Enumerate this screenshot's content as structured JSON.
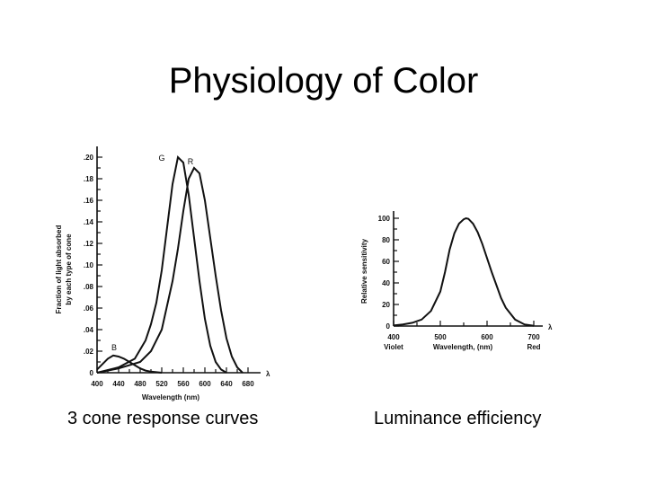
{
  "slide": {
    "title": "Physiology of Color",
    "left_caption": "3 cone response curves",
    "right_caption": "Luminance efficiency"
  },
  "chart_data": [
    {
      "type": "line",
      "ylabel_lines": [
        "Fraction of light absorbed",
        "by each type of cone"
      ],
      "xlabel": "Wavelength (nm)",
      "x_axis_symbol": "λ",
      "xlim": [
        400,
        680
      ],
      "ylim": [
        0,
        0.2
      ],
      "x_ticks": [
        400,
        440,
        480,
        520,
        560,
        600,
        640,
        680
      ],
      "x_tick_labels": [
        "400",
        "440",
        "480",
        "520",
        "560",
        "600",
        "640",
        "680"
      ],
      "x_minor_ticks": [
        420,
        460,
        500,
        540,
        580,
        620,
        660
      ],
      "y_ticks": [
        0,
        0.02,
        0.04,
        0.06,
        0.08,
        0.1,
        0.12,
        0.14,
        0.16,
        0.18,
        0.2
      ],
      "y_tick_labels": [
        "0",
        ".02",
        ".04",
        ".06",
        ".08",
        ".10",
        ".12",
        ".14",
        ".16",
        ".18",
        ".20"
      ],
      "series": [
        {
          "name": "B",
          "x": [
            400,
            410,
            420,
            430,
            440,
            450,
            460,
            470,
            480,
            490,
            500,
            510,
            520
          ],
          "y": [
            0.003,
            0.008,
            0.013,
            0.016,
            0.015,
            0.013,
            0.01,
            0.007,
            0.004,
            0.002,
            0.001,
            0.0005,
            0.0
          ]
        },
        {
          "name": "G",
          "x": [
            400,
            440,
            470,
            490,
            500,
            510,
            520,
            530,
            540,
            550,
            560,
            570,
            580,
            590,
            600,
            610,
            620,
            630,
            640
          ],
          "y": [
            0.0,
            0.005,
            0.013,
            0.03,
            0.045,
            0.065,
            0.095,
            0.135,
            0.175,
            0.2,
            0.195,
            0.165,
            0.125,
            0.085,
            0.05,
            0.025,
            0.01,
            0.003,
            0.0
          ]
        },
        {
          "name": "R",
          "x": [
            400,
            440,
            480,
            500,
            520,
            540,
            550,
            560,
            570,
            580,
            590,
            600,
            610,
            620,
            630,
            640,
            650,
            660,
            670
          ],
          "y": [
            0.0,
            0.004,
            0.01,
            0.02,
            0.04,
            0.085,
            0.115,
            0.15,
            0.18,
            0.19,
            0.185,
            0.16,
            0.125,
            0.09,
            0.058,
            0.032,
            0.015,
            0.005,
            0.0
          ]
        }
      ]
    },
    {
      "type": "line",
      "ylabel": "Relative sensitivity",
      "xlabel": "Wavelength, (nm)",
      "x_axis_symbol": "λ",
      "xlim": [
        400,
        700
      ],
      "ylim": [
        0,
        100
      ],
      "x_ticks": [
        400,
        500,
        600,
        700
      ],
      "x_tick_labels": [
        "400",
        "500",
        "600",
        "700"
      ],
      "x_minor_ticks": [
        450,
        550,
        650
      ],
      "x_sublabels": [
        {
          "x": 400,
          "text": "Violet"
        },
        {
          "x": 700,
          "text": "Red"
        }
      ],
      "y_ticks": [
        0,
        20,
        40,
        60,
        80,
        100
      ],
      "y_tick_labels": [
        "0",
        "20",
        "40",
        "60",
        "80",
        "100"
      ],
      "y_minor_ticks": [
        10,
        30,
        50,
        70,
        90
      ],
      "series": [
        {
          "name": "",
          "x": [
            400,
            420,
            440,
            460,
            480,
            500,
            510,
            520,
            530,
            540,
            550,
            555,
            560,
            570,
            580,
            590,
            600,
            610,
            620,
            630,
            640,
            660,
            680,
            700
          ],
          "y": [
            0.5,
            1.5,
            3,
            6,
            14,
            32,
            50,
            71,
            86,
            95,
            99,
            100,
            99.5,
            95,
            87,
            76,
            63,
            50,
            38,
            26,
            17,
            6,
            1.5,
            0.2
          ]
        }
      ]
    }
  ]
}
